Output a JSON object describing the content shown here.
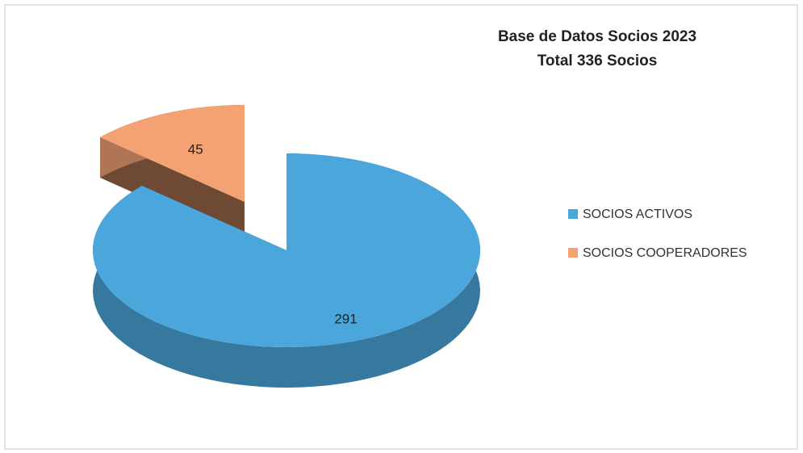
{
  "chart_data": {
    "type": "pie",
    "title": "Base de Datos Socios 2023",
    "subtitle": "Total 336 Socios",
    "categories": [
      "SOCIOS ACTIVOS",
      "SOCIOS COOPERADORES"
    ],
    "values": [
      291,
      45
    ],
    "colors": [
      "#4ba6dc",
      "#f4a274"
    ],
    "legend": "right",
    "exploded": [
      false,
      true
    ]
  }
}
